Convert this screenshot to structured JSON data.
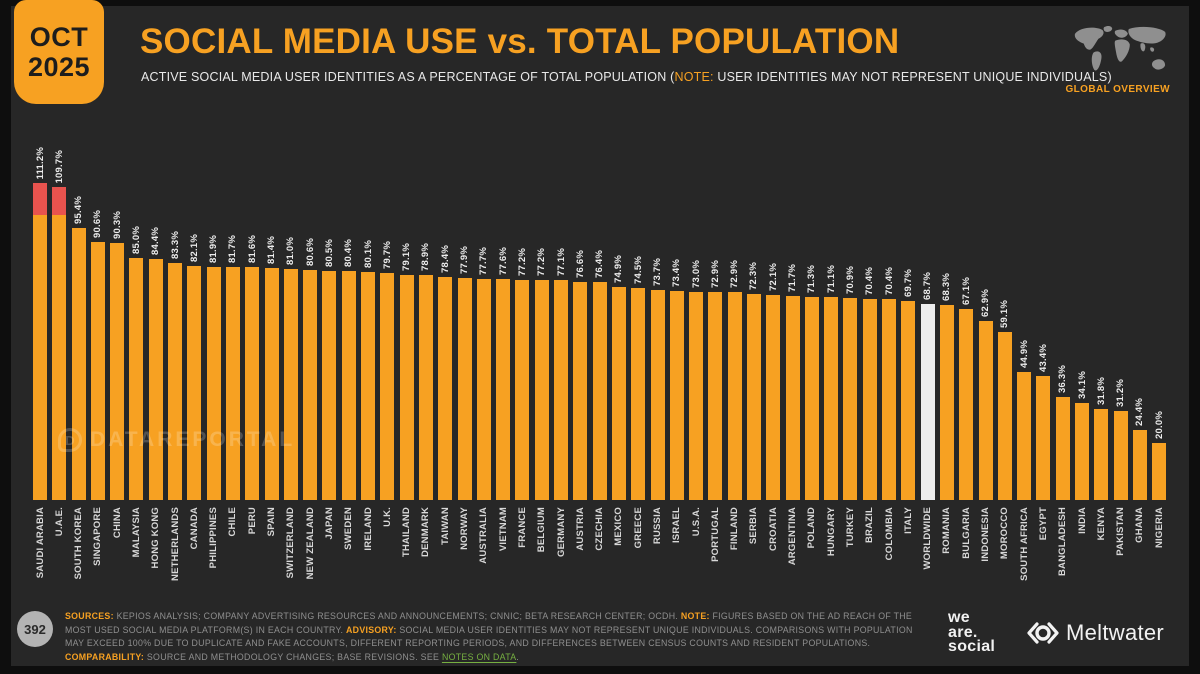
{
  "header": {
    "date_badge": {
      "month": "OCT",
      "year": "2025"
    },
    "title": "SOCIAL MEDIA USE vs. TOTAL POPULATION",
    "subtitle_prefix": "ACTIVE SOCIAL MEDIA USER IDENTITIES AS A PERCENTAGE OF TOTAL POPULATION (",
    "subtitle_note_label": "NOTE:",
    "subtitle_suffix": " USER IDENTITIES MAY NOT REPRESENT UNIQUE INDIVIDUALS)",
    "overview_label": "GLOBAL OVERVIEW"
  },
  "chart_data": {
    "type": "bar",
    "title": "SOCIAL MEDIA USE vs. TOTAL POPULATION",
    "unit": "%",
    "ylim": [
      0,
      115
    ],
    "grid": false,
    "legend": "none",
    "bar_color": "#F7A122",
    "over_100_color": "#E8534E",
    "highlight_color": "#EDEDED",
    "highlight_category": "WORLDWIDE",
    "categories": [
      "SAUDI ARABIA",
      "U.A.E.",
      "SOUTH KOREA",
      "SINGAPORE",
      "CHINA",
      "MALAYSIA",
      "HONG KONG",
      "NETHERLANDS",
      "CANADA",
      "PHILIPPINES",
      "CHILE",
      "PERU",
      "SPAIN",
      "SWITZERLAND",
      "NEW ZEALAND",
      "JAPAN",
      "SWEDEN",
      "IRELAND",
      "U.K.",
      "THAILAND",
      "DENMARK",
      "TAIWAN",
      "NORWAY",
      "AUSTRALIA",
      "VIETNAM",
      "FRANCE",
      "BELGIUM",
      "GERMANY",
      "AUSTRIA",
      "CZECHIA",
      "MEXICO",
      "GREECE",
      "RUSSIA",
      "ISRAEL",
      "U.S.A.",
      "PORTUGAL",
      "FINLAND",
      "SERBIA",
      "CROATIA",
      "ARGENTINA",
      "POLAND",
      "HUNGARY",
      "TURKEY",
      "BRAZIL",
      "COLOMBIA",
      "ITALY",
      "WORLDWIDE",
      "ROMANIA",
      "BULGARIA",
      "INDONESIA",
      "MOROCCO",
      "SOUTH AFRICA",
      "EGYPT",
      "BANGLADESH",
      "INDIA",
      "KENYA",
      "PAKISTAN",
      "GHANA",
      "NIGERIA"
    ],
    "values": [
      111.2,
      109.7,
      95.4,
      90.6,
      90.3,
      85.0,
      84.4,
      83.3,
      82.1,
      81.9,
      81.7,
      81.6,
      81.4,
      81.0,
      80.6,
      80.5,
      80.4,
      80.1,
      79.7,
      79.1,
      78.9,
      78.4,
      77.9,
      77.7,
      77.6,
      77.2,
      77.2,
      77.1,
      76.6,
      76.4,
      74.9,
      74.5,
      73.7,
      73.4,
      73.0,
      72.9,
      72.9,
      72.3,
      72.1,
      71.7,
      71.3,
      71.1,
      70.9,
      70.4,
      70.4,
      69.7,
      68.7,
      68.3,
      67.1,
      62.9,
      59.1,
      44.9,
      43.4,
      36.3,
      34.1,
      31.8,
      31.2,
      24.4,
      20.0
    ]
  },
  "watermark": {
    "text": "DATAREPORTAL",
    "mark": "D"
  },
  "footer": {
    "page_number": "392",
    "segments": [
      {
        "t": "SOURCES:",
        "s": "key"
      },
      {
        "t": " KEPIOS ANALYSIS; COMPANY ADVERTISING RESOURCES AND ANNOUNCEMENTS; CNNIC; BETA RESEARCH CENTER; OCDH. ",
        "s": "plain"
      },
      {
        "t": "NOTE:",
        "s": "key"
      },
      {
        "t": " FIGURES BASED ON THE AD REACH OF THE MOST USED SOCIAL MEDIA PLATFORM(S) IN EACH COUNTRY. ",
        "s": "plain"
      },
      {
        "t": "ADVISORY:",
        "s": "key"
      },
      {
        "t": " SOCIAL MEDIA USER IDENTITIES MAY NOT REPRESENT UNIQUE INDIVIDUALS. COMPARISONS WITH POPULATION MAY EXCEED 100% DUE TO DUPLICATE AND FAKE ACCOUNTS, DIFFERENT REPORTING PERIODS, AND DIFFERENCES BETWEEN CENSUS COUNTS AND RESIDENT POPULATIONS. ",
        "s": "plain"
      },
      {
        "t": "COMPARABILITY:",
        "s": "key"
      },
      {
        "t": " SOURCE AND METHODOLOGY CHANGES; BASE REVISIONS. SEE ",
        "s": "plain"
      },
      {
        "t": "NOTES ON DATA",
        "s": "link"
      },
      {
        "t": ".",
        "s": "plain"
      }
    ],
    "logos": {
      "we_are_social_lines": [
        "we",
        "are.",
        "social"
      ],
      "meltwater": "Meltwater"
    }
  }
}
